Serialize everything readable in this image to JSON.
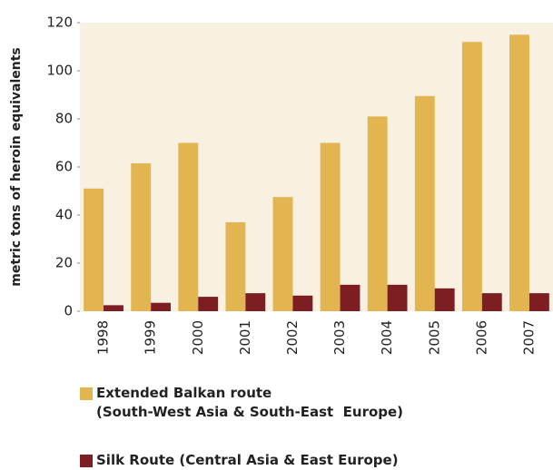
{
  "chart_data": {
    "type": "bar",
    "y_label": "metric tons of heroin equivalents",
    "categories": [
      "1998",
      "1999",
      "2000",
      "2001",
      "2002",
      "2003",
      "2004",
      "2005",
      "2006",
      "2007"
    ],
    "series": [
      {
        "name": "Extended Balkan route\n(South-West Asia & South-East  Europe)",
        "color": "#e2b550",
        "values": [
          51,
          61.5,
          70,
          37,
          47.5,
          70,
          81,
          89.5,
          112,
          115
        ]
      },
      {
        "name": "Silk Route (Central Asia & East Europe)",
        "color": "#7d1e22",
        "values": [
          2.5,
          3.5,
          6,
          7.5,
          6.5,
          11,
          11,
          9.5,
          7.5,
          7.5
        ]
      }
    ],
    "ylim": [
      0,
      120
    ],
    "yticks": [
      0,
      20,
      40,
      60,
      80,
      100,
      120
    ],
    "plot_background": "#f8f0e0"
  }
}
